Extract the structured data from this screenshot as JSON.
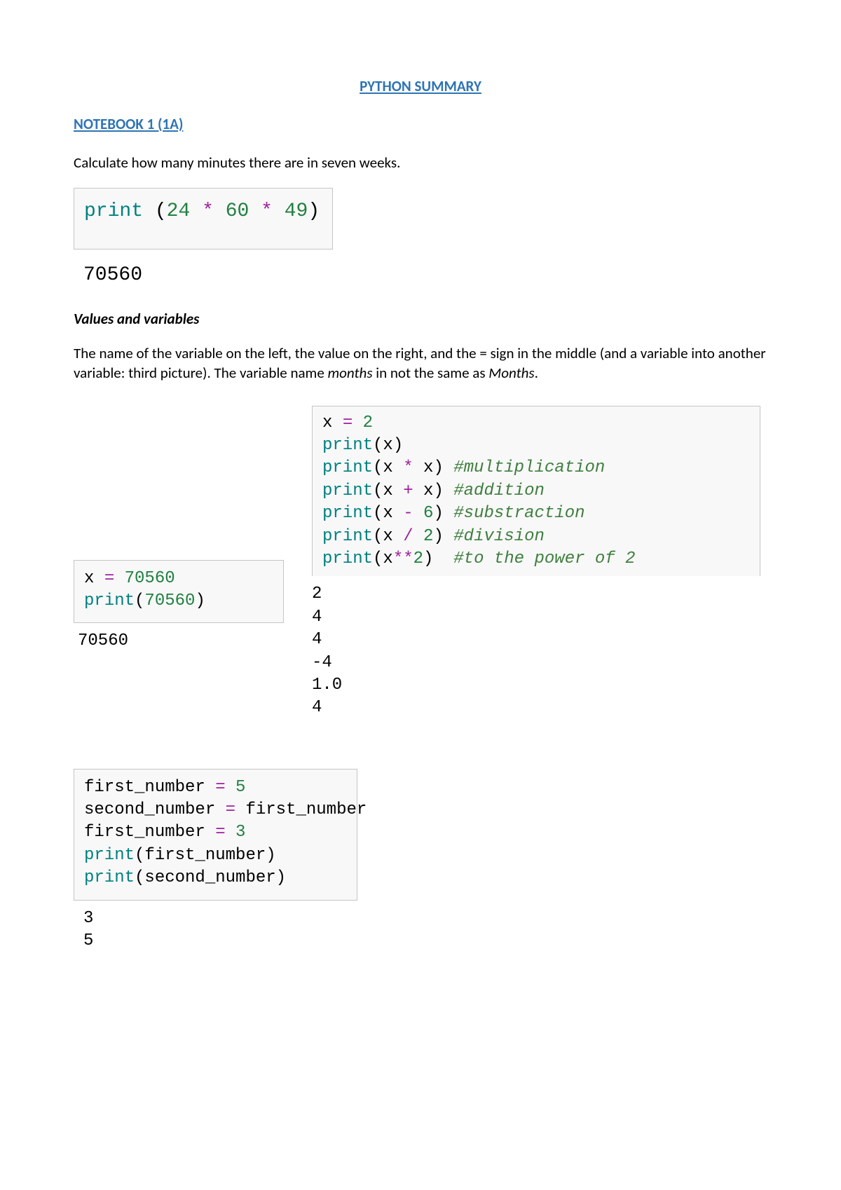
{
  "colors": {
    "title_blue": "#2e74b5",
    "body_text": "#000000",
    "code_fn": "#008080",
    "code_default": "#000000",
    "code_op": "#a020a0",
    "code_num": "#208040",
    "code_comment": "#3f7f3f",
    "cell_border": "#c5c5c5",
    "cell_bg": "#f8f8f8"
  },
  "title": "PYTHON SUMMARY",
  "section": "NOTEBOOK 1 (1A)",
  "p1": "Calculate how many minutes there are in seven weeks.",
  "code1": {
    "tokens": [
      {
        "t": "print ",
        "c": "code_fn"
      },
      {
        "t": "(",
        "c": "code_default"
      },
      {
        "t": "24",
        "c": "code_num"
      },
      {
        "t": " ",
        "c": "code_default"
      },
      {
        "t": "*",
        "c": "code_op"
      },
      {
        "t": " ",
        "c": "code_default"
      },
      {
        "t": "60",
        "c": "code_num"
      },
      {
        "t": " ",
        "c": "code_default"
      },
      {
        "t": "*",
        "c": "code_op"
      },
      {
        "t": " ",
        "c": "code_default"
      },
      {
        "t": "49",
        "c": "code_num"
      },
      {
        "t": ")",
        "c": "code_default"
      }
    ]
  },
  "out1": "70560",
  "subheading": "Values and variables",
  "p2_pre": "The name of the variable on the left, the value on the right, and the = sign in the middle (and a variable into another variable: third picture). The variable name ",
  "p2_em1": "months",
  "p2_mid": " in not the same as ",
  "p2_em2": "Months",
  "p2_post": ".",
  "code2": {
    "lines": [
      [
        {
          "t": "x ",
          "c": "code_default"
        },
        {
          "t": "=",
          "c": "code_op"
        },
        {
          "t": " ",
          "c": "code_default"
        },
        {
          "t": "70560",
          "c": "code_num"
        }
      ],
      [
        {
          "t": "print",
          "c": "code_fn"
        },
        {
          "t": "(",
          "c": "code_default"
        },
        {
          "t": "70560",
          "c": "code_num"
        },
        {
          "t": ")",
          "c": "code_default"
        }
      ]
    ]
  },
  "out2": "70560",
  "code3": {
    "lines": [
      [
        {
          "t": "x ",
          "c": "code_default"
        },
        {
          "t": "=",
          "c": "code_op"
        },
        {
          "t": " ",
          "c": "code_default"
        },
        {
          "t": "2",
          "c": "code_num"
        }
      ],
      [
        {
          "t": "print",
          "c": "code_fn"
        },
        {
          "t": "(x)",
          "c": "code_default"
        }
      ],
      [
        {
          "t": "print",
          "c": "code_fn"
        },
        {
          "t": "(x ",
          "c": "code_default"
        },
        {
          "t": "*",
          "c": "code_op"
        },
        {
          "t": " x) ",
          "c": "code_default"
        },
        {
          "t": "#multiplication",
          "c": "code_comment",
          "i": true
        }
      ],
      [
        {
          "t": "print",
          "c": "code_fn"
        },
        {
          "t": "(x ",
          "c": "code_default"
        },
        {
          "t": "+",
          "c": "code_op"
        },
        {
          "t": " x) ",
          "c": "code_default"
        },
        {
          "t": "#addition",
          "c": "code_comment",
          "i": true
        }
      ],
      [
        {
          "t": "print",
          "c": "code_fn"
        },
        {
          "t": "(x ",
          "c": "code_default"
        },
        {
          "t": "-",
          "c": "code_op"
        },
        {
          "t": " ",
          "c": "code_default"
        },
        {
          "t": "6",
          "c": "code_num"
        },
        {
          "t": ") ",
          "c": "code_default"
        },
        {
          "t": "#substraction",
          "c": "code_comment",
          "i": true
        }
      ],
      [
        {
          "t": "print",
          "c": "code_fn"
        },
        {
          "t": "(x ",
          "c": "code_default"
        },
        {
          "t": "/",
          "c": "code_op"
        },
        {
          "t": " ",
          "c": "code_default"
        },
        {
          "t": "2",
          "c": "code_num"
        },
        {
          "t": ") ",
          "c": "code_default"
        },
        {
          "t": "#division",
          "c": "code_comment",
          "i": true
        }
      ],
      [
        {
          "t": "print",
          "c": "code_fn"
        },
        {
          "t": "(x",
          "c": "code_default"
        },
        {
          "t": "**",
          "c": "code_op"
        },
        {
          "t": "2",
          "c": "code_num"
        },
        {
          "t": ")  ",
          "c": "code_default"
        },
        {
          "t": "#to the power of 2",
          "c": "code_comment",
          "i": true
        }
      ]
    ]
  },
  "out3": "2\n4\n4\n-4\n1.0\n4",
  "code4": {
    "lines": [
      [
        {
          "t": "first_number ",
          "c": "code_default"
        },
        {
          "t": "=",
          "c": "code_op"
        },
        {
          "t": " ",
          "c": "code_default"
        },
        {
          "t": "5",
          "c": "code_num"
        }
      ],
      [
        {
          "t": "second_number ",
          "c": "code_default"
        },
        {
          "t": "=",
          "c": "code_op"
        },
        {
          "t": " first_number",
          "c": "code_default"
        }
      ],
      [
        {
          "t": "first_number ",
          "c": "code_default"
        },
        {
          "t": "=",
          "c": "code_op"
        },
        {
          "t": " ",
          "c": "code_default"
        },
        {
          "t": "3",
          "c": "code_num"
        }
      ],
      [
        {
          "t": "print",
          "c": "code_fn"
        },
        {
          "t": "(first_number)",
          "c": "code_default"
        }
      ],
      [
        {
          "t": "print",
          "c": "code_fn"
        },
        {
          "t": "(second_number)",
          "c": "code_default"
        }
      ]
    ]
  },
  "out4": "3\n5"
}
